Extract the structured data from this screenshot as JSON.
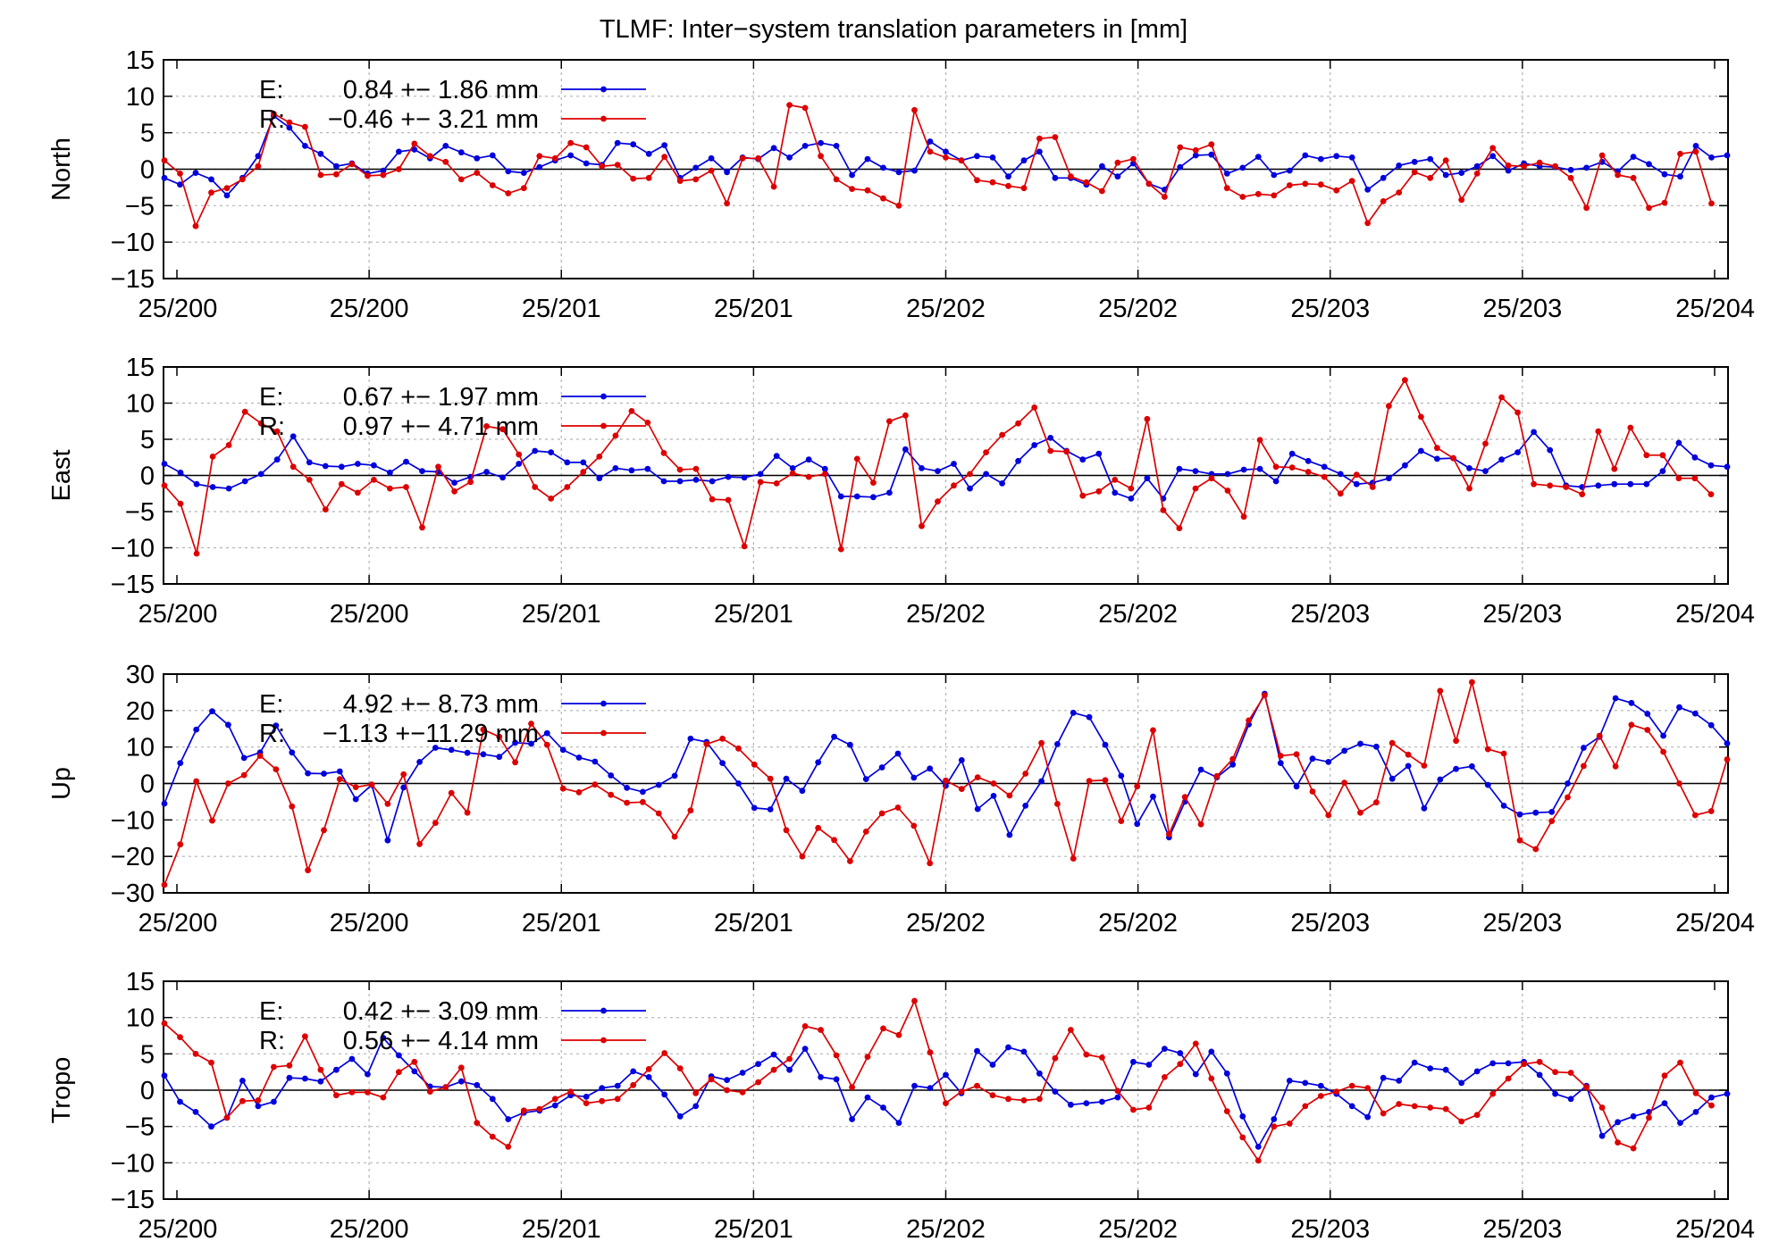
{
  "title": "TLMF: Inter−system translation parameters in [mm]",
  "chart_data": [
    {
      "type": "line",
      "ylabel": "North",
      "ylim": [
        -15,
        15
      ],
      "yticks": [
        "15",
        "10",
        "5",
        "0",
        "−5",
        "−10",
        "−15"
      ],
      "xticks": [
        "25/200",
        "25/200",
        "25/201",
        "25/201",
        "25/202",
        "25/202",
        "25/203",
        "25/203",
        "25/204"
      ],
      "grid": "dotted",
      "legend_position": "top-left",
      "series": [
        {
          "legend_key": "E:",
          "legend_text": "0.84 +− 1.86 mm",
          "color": "#0000dd",
          "values": [
            -1.2,
            -2.1,
            -0.5,
            -1.4,
            -3.6,
            -1.2,
            1.8,
            7.3,
            5.7,
            3.2,
            2.1,
            0.4,
            0.8,
            -0.6,
            -0.2,
            2.4,
            2.7,
            1.5,
            3.2,
            2.3,
            1.5,
            1.9,
            -0.3,
            -0.5,
            0.3,
            1.2,
            1.9,
            0.8,
            0.6,
            3.6,
            3.4,
            2.1,
            3.3,
            -1.2,
            0.2,
            1.5,
            -0.4,
            1.6,
            1.4,
            2.9,
            1.6,
            3.2,
            3.6,
            3.2,
            -0.8,
            1.4,
            0.2,
            -0.4,
            -0.2,
            3.8,
            2.4,
            1.2,
            1.8,
            1.6,
            -1.0,
            1.2,
            2.4,
            -1.2,
            -1.2,
            -2.1,
            0.4,
            -1.0,
            0.8,
            -2.0,
            -2.8,
            0.3,
            1.9,
            2.0,
            -0.6,
            0.2,
            1.7,
            -0.8,
            -0.2,
            1.9,
            1.4,
            1.8,
            1.6,
            -2.8,
            -1.2,
            0.5,
            1.0,
            1.4,
            -0.8,
            -0.5,
            0.4,
            1.8,
            -0.2,
            0.8,
            0.4,
            0.3,
            -0.1,
            0.2,
            1.0,
            -0.3,
            1.7,
            0.7,
            -0.7,
            -1.0,
            3.2,
            1.6,
            1.9
          ]
        },
        {
          "legend_key": "R:",
          "legend_text": "−0.46 +− 3.21 mm",
          "color": "#dd0000",
          "values": [
            1.2,
            -0.6,
            -7.8,
            -3.2,
            -2.6,
            -1.4,
            0.4,
            7.6,
            6.4,
            5.8,
            -0.8,
            -0.7,
            0.7,
            -0.9,
            -0.8,
            0.0,
            3.5,
            1.8,
            1.0,
            -1.4,
            -0.5,
            -2.2,
            -3.3,
            -2.6,
            1.8,
            1.5,
            3.6,
            3.0,
            0.4,
            0.6,
            -1.3,
            -1.2,
            1.7,
            -1.6,
            -1.4,
            -0.2,
            -4.7,
            1.5,
            1.5,
            -2.4,
            8.8,
            8.4,
            1.8,
            -1.4,
            -2.7,
            -2.9,
            -4.0,
            -5.0,
            8.1,
            2.4,
            1.6,
            1.2,
            -1.5,
            -1.8,
            -2.3,
            -2.6,
            4.2,
            4.4,
            -1.0,
            -1.8,
            -3.0,
            0.9,
            1.4,
            -2.0,
            -3.8,
            3.0,
            2.6,
            3.4,
            -2.6,
            -3.8,
            -3.4,
            -3.6,
            -2.2,
            -2.0,
            -2.1,
            -2.9,
            -1.6,
            -7.4,
            -4.4,
            -3.2,
            -0.4,
            -1.2,
            1.2,
            -4.2,
            -0.6,
            2.9,
            0.5,
            0.4,
            0.9,
            0.4,
            -1.2,
            -5.3,
            1.9,
            -0.8,
            -1.2,
            -5.3,
            -4.6,
            2.1,
            2.4,
            -4.7
          ]
        }
      ]
    },
    {
      "type": "line",
      "ylabel": "East",
      "ylim": [
        -15,
        15
      ],
      "yticks": [
        "15",
        "10",
        "5",
        "0",
        "−5",
        "−10",
        "−15"
      ],
      "xticks": [
        "25/200",
        "25/200",
        "25/201",
        "25/201",
        "25/202",
        "25/202",
        "25/203",
        "25/203",
        "25/204"
      ],
      "grid": "dotted",
      "legend_position": "top-left",
      "series": [
        {
          "legend_key": "E:",
          "legend_text": "0.67 +− 1.97 mm",
          "color": "#0000dd",
          "values": [
            1.6,
            0.4,
            -1.2,
            -1.6,
            -1.8,
            -0.8,
            0.2,
            2.2,
            5.4,
            1.8,
            1.3,
            1.2,
            1.6,
            1.4,
            0.4,
            1.9,
            0.6,
            0.5,
            -1.0,
            -0.2,
            0.5,
            -0.3,
            1.6,
            3.4,
            3.2,
            1.8,
            1.8,
            -0.4,
            1.0,
            0.7,
            0.9,
            -0.8,
            -0.8,
            -0.6,
            -0.8,
            -0.2,
            -0.3,
            0.2,
            2.7,
            1.0,
            2.2,
            0.9,
            -2.9,
            -2.9,
            -3.0,
            -2.4,
            3.6,
            1.0,
            0.6,
            1.6,
            -1.8,
            0.2,
            -1.1,
            2.0,
            4.2,
            5.2,
            3.4,
            2.2,
            3.0,
            -2.4,
            -3.2,
            -0.4,
            -3.2,
            0.9,
            0.6,
            0.2,
            0.2,
            0.8,
            0.9,
            -0.8,
            3.0,
            2.0,
            1.2,
            0.2,
            -1.2,
            -1.0,
            -0.4,
            1.4,
            3.4,
            2.3,
            2.4,
            1.0,
            0.6,
            2.2,
            3.2,
            6.0,
            3.5,
            -1.4,
            -1.6,
            -1.4,
            -1.2,
            -1.2,
            -1.2,
            0.6,
            4.5,
            2.5,
            1.4,
            1.2
          ]
        },
        {
          "legend_key": "R:",
          "legend_text": "0.97 +− 4.71 mm",
          "color": "#dd0000",
          "values": [
            -1.4,
            -3.9,
            -10.8,
            2.6,
            4.2,
            8.8,
            7.2,
            6.1,
            1.2,
            -0.6,
            -4.7,
            -1.2,
            -2.4,
            -0.6,
            -1.8,
            -1.6,
            -7.2,
            1.2,
            -2.2,
            -0.9,
            6.8,
            6.4,
            2.9,
            -1.6,
            -3.2,
            -1.6,
            0.5,
            2.6,
            5.5,
            8.9,
            7.3,
            3.1,
            0.8,
            0.9,
            -3.3,
            -3.4,
            -9.8,
            -0.9,
            -1.1,
            0.3,
            -0.2,
            0.2,
            -10.2,
            2.3,
            -1.0,
            7.5,
            8.3,
            -7.0,
            -3.6,
            -1.4,
            0.2,
            3.2,
            5.6,
            7.2,
            9.4,
            3.4,
            3.3,
            -2.8,
            -2.2,
            -0.6,
            -1.8,
            7.8,
            -4.8,
            -7.3,
            -1.8,
            -0.4,
            -2.1,
            -5.7,
            4.9,
            1.2,
            1.1,
            0.5,
            -0.2,
            -2.5,
            0.1,
            -1.6,
            9.6,
            13.2,
            8.1,
            3.8,
            2.4,
            -1.8,
            4.4,
            10.8,
            8.7,
            -1.2,
            -1.4,
            -1.6,
            -2.6,
            6.1,
            0.9,
            6.6,
            2.8,
            2.8,
            -0.4,
            -0.4,
            -2.6
          ]
        }
      ]
    },
    {
      "type": "line",
      "ylabel": "Up",
      "ylim": [
        -30,
        30
      ],
      "yticks": [
        "30",
        "20",
        "10",
        "0",
        "−10",
        "−20",
        "−30"
      ],
      "xticks": [
        "25/200",
        "25/200",
        "25/201",
        "25/201",
        "25/202",
        "25/202",
        "25/203",
        "25/203",
        "25/204"
      ],
      "grid": "dotted",
      "legend_position": "top-left",
      "series": [
        {
          "legend_key": "E:",
          "legend_text": "4.92 +− 8.73 mm",
          "color": "#0000dd",
          "values": [
            -5.5,
            5.6,
            14.8,
            19.8,
            16.1,
            7.0,
            8.5,
            15.9,
            8.5,
            2.8,
            2.7,
            3.3,
            -4.3,
            -0.4,
            -15.6,
            -1.1,
            5.9,
            9.8,
            9.2,
            8.4,
            8.0,
            7.3,
            11.2,
            10.9,
            13.8,
            9.2,
            7.1,
            6.0,
            2.2,
            -1.2,
            -2.3,
            -0.4,
            2.1,
            12.3,
            11.4,
            5.6,
            0.0,
            -6.7,
            -7.1,
            1.3,
            -2.0,
            5.8,
            12.8,
            10.6,
            1.2,
            4.4,
            8.2,
            1.6,
            4.1,
            -0.6,
            6.4,
            -7.0,
            -3.4,
            -14.1,
            -6.1,
            0.6,
            10.8,
            19.4,
            18.2,
            10.6,
            2.1,
            -11.1,
            -3.6,
            -14.8,
            -5.0,
            3.8,
            1.7,
            5.2,
            16.2,
            24.6,
            5.6,
            -0.8,
            6.8,
            5.9,
            9.0,
            10.9,
            10.1,
            1.3,
            4.8,
            -6.8,
            1.1,
            4.0,
            4.7,
            -0.4,
            -6.1,
            -8.5,
            -8.0,
            -7.8,
            0.0,
            9.8,
            12.8,
            23.4,
            22.1,
            19.1,
            13.1,
            20.9,
            19.2,
            16.0,
            11.0
          ]
        },
        {
          "legend_key": "R:",
          "legend_text": "−1.13 +−11.29 mm",
          "color": "#dd0000",
          "values": [
            -27.8,
            -16.7,
            0.6,
            -10.2,
            0.0,
            2.3,
            7.6,
            3.9,
            -6.3,
            -23.8,
            -12.8,
            1.2,
            -1.0,
            -0.3,
            -5.6,
            2.5,
            -16.6,
            -10.8,
            -2.6,
            -8.0,
            14.8,
            12.8,
            5.8,
            16.4,
            10.6,
            -1.4,
            -2.4,
            -0.3,
            -3.1,
            -5.3,
            -5.1,
            -8.2,
            -14.6,
            -7.4,
            10.8,
            12.3,
            9.6,
            5.2,
            1.3,
            -12.8,
            -20.0,
            -12.2,
            -15.5,
            -21.3,
            -13.2,
            -8.2,
            -6.6,
            -11.6,
            -21.9,
            0.8,
            -1.5,
            1.7,
            0.0,
            -3.3,
            2.7,
            11.1,
            -5.6,
            -20.6,
            0.7,
            0.9,
            -10.3,
            -0.8,
            14.6,
            -13.9,
            -3.7,
            -11.2,
            2.0,
            6.7,
            17.3,
            24.2,
            7.6,
            8.0,
            -2.2,
            -8.7,
            0.2,
            -8.0,
            -5.2,
            11.1,
            7.9,
            4.9,
            25.4,
            11.7,
            27.8,
            9.4,
            8.2,
            -15.6,
            -18.0,
            -10.3,
            -3.8,
            4.8,
            13.1,
            4.7,
            16.1,
            14.7,
            8.7,
            0.0,
            -8.7,
            -7.6,
            6.6
          ]
        }
      ]
    },
    {
      "type": "line",
      "ylabel": "Tropo",
      "ylim": [
        -15,
        15
      ],
      "yticks": [
        "15",
        "10",
        "5",
        "0",
        "−5",
        "−10",
        "−15"
      ],
      "xticks": [
        "25/200",
        "25/200",
        "25/201",
        "25/201",
        "25/202",
        "25/202",
        "25/203",
        "25/203",
        "25/204"
      ],
      "grid": "dotted",
      "legend_position": "top-left",
      "series": [
        {
          "legend_key": "E:",
          "legend_text": "0.42 +− 3.09 mm",
          "color": "#0000dd",
          "values": [
            2.0,
            -1.6,
            -3.0,
            -5.0,
            -3.8,
            1.3,
            -2.2,
            -1.6,
            1.7,
            1.6,
            1.2,
            2.8,
            4.3,
            2.2,
            7.2,
            4.8,
            2.6,
            0.5,
            0.4,
            1.2,
            0.7,
            -1.2,
            -4.0,
            -3.1,
            -2.8,
            -2.1,
            -0.7,
            -0.9,
            0.3,
            0.6,
            2.6,
            1.8,
            -0.6,
            -3.6,
            -2.2,
            1.9,
            1.4,
            2.4,
            3.6,
            4.9,
            2.8,
            5.7,
            1.8,
            1.5,
            -4.0,
            -1.0,
            -2.4,
            -4.5,
            0.6,
            0.3,
            2.1,
            -0.4,
            5.4,
            3.5,
            5.9,
            5.3,
            2.3,
            -0.2,
            -2.0,
            -1.8,
            -1.6,
            -1.0,
            3.9,
            3.5,
            5.7,
            5.1,
            2.2,
            5.3,
            2.3,
            -3.6,
            -7.8,
            -4.0,
            1.3,
            1.0,
            0.6,
            -0.5,
            -2.2,
            -3.7,
            1.7,
            1.3,
            3.8,
            3.0,
            2.8,
            1.0,
            2.6,
            3.7,
            3.7,
            3.9,
            2.1,
            -0.5,
            -1.2,
            0.6,
            -6.3,
            -4.4,
            -3.6,
            -3.0,
            -1.8,
            -4.5,
            -3.0,
            -1.0,
            -0.5
          ]
        },
        {
          "legend_key": "R:",
          "legend_text": "0.56 +− 4.14 mm",
          "color": "#dd0000",
          "values": [
            9.2,
            7.3,
            5.0,
            3.8,
            -3.8,
            -1.5,
            -1.4,
            3.2,
            3.4,
            7.4,
            2.8,
            -0.7,
            -0.3,
            -0.3,
            -1.0,
            2.5,
            3.9,
            -0.2,
            0.4,
            3.1,
            -4.5,
            -6.4,
            -7.8,
            -2.8,
            -2.6,
            -1.2,
            -0.2,
            -1.8,
            -1.5,
            -1.2,
            0.7,
            2.9,
            5.1,
            3.0,
            -0.4,
            1.5,
            0.0,
            -0.3,
            1.1,
            2.8,
            4.3,
            8.8,
            8.3,
            4.8,
            0.4,
            4.6,
            8.5,
            7.6,
            12.3,
            5.2,
            -1.8,
            -0.2,
            0.6,
            -0.7,
            -1.2,
            -1.4,
            -1.2,
            4.4,
            8.3,
            4.9,
            4.5,
            -0.1,
            -2.7,
            -2.4,
            1.8,
            3.6,
            6.4,
            1.6,
            -2.9,
            -6.5,
            -9.7,
            -5.0,
            -4.6,
            -2.2,
            -0.8,
            -0.2,
            0.6,
            0.3,
            -3.2,
            -1.9,
            -2.2,
            -2.4,
            -2.6,
            -4.3,
            -3.4,
            -0.5,
            1.6,
            3.6,
            3.9,
            2.5,
            2.4,
            0.4,
            -2.4,
            -7.2,
            -8.0,
            -3.8,
            2.0,
            3.8,
            -0.4,
            -2.1
          ]
        }
      ]
    }
  ]
}
